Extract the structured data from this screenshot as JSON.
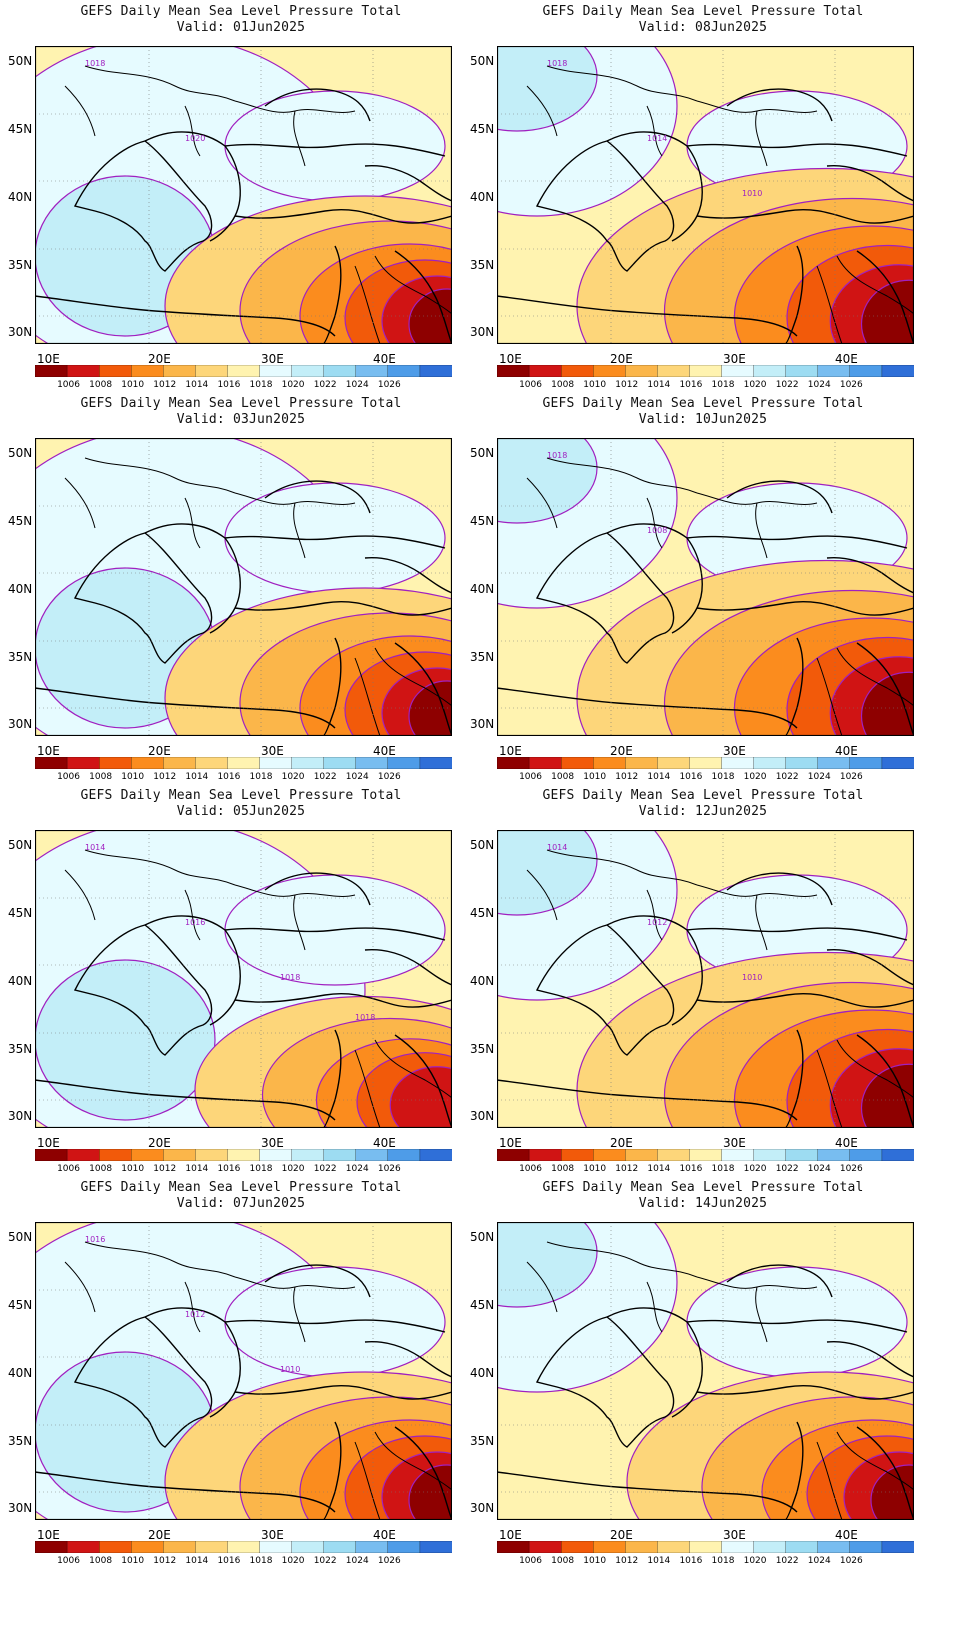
{
  "colorbar": {
    "levels": [
      "1006",
      "1008",
      "1010",
      "1012",
      "1014",
      "1016",
      "1018",
      "1020",
      "1022",
      "1024",
      "1026"
    ],
    "colors": [
      "#8e0000",
      "#d01414",
      "#f25a0a",
      "#fb8c1e",
      "#fbb64a",
      "#fdd67a",
      "#fff3b0",
      "#e6fbff",
      "#c3eef8",
      "#9ddcf2",
      "#78bdf0",
      "#4e9ce8",
      "#2f6fd8"
    ]
  },
  "lat_labels": [
    "50N",
    "45N",
    "40N",
    "35N",
    "30N"
  ],
  "lon_labels": [
    "10E",
    "20E",
    "30E",
    "40E"
  ],
  "panels": [
    {
      "title": "GEFS Daily Mean Sea Level Pressure Total",
      "valid": "Valid: 01Jun2025",
      "contour_labels": [
        "1018",
        "1020"
      ],
      "high_west": true,
      "low_east": "strong"
    },
    {
      "title": "GEFS Daily Mean Sea Level Pressure Total",
      "valid": "Valid: 08Jun2025",
      "contour_labels": [
        "1018",
        "1014",
        "1010"
      ],
      "high_west": false,
      "low_east": "very strong"
    },
    {
      "title": "GEFS Daily Mean Sea Level Pressure Total",
      "valid": "Valid: 03Jun2025",
      "contour_labels": [],
      "high_west": true,
      "low_east": "strong"
    },
    {
      "title": "GEFS Daily Mean Sea Level Pressure Total",
      "valid": "Valid: 10Jun2025",
      "contour_labels": [
        "1018",
        "1008"
      ],
      "high_west": false,
      "low_east": "very strong"
    },
    {
      "title": "GEFS Daily Mean Sea Level Pressure Total",
      "valid": "Valid: 05Jun2025",
      "contour_labels": [
        "1014",
        "1016",
        "1018",
        "1018"
      ],
      "high_west": true,
      "low_east": "moderate"
    },
    {
      "title": "GEFS Daily Mean Sea Level Pressure Total",
      "valid": "Valid: 12Jun2025",
      "contour_labels": [
        "1014",
        "1012",
        "1010"
      ],
      "high_west": false,
      "low_east": "very strong"
    },
    {
      "title": "GEFS Daily Mean Sea Level Pressure Total",
      "valid": "Valid: 07Jun2025",
      "contour_labels": [
        "1016",
        "1012",
        "1010"
      ],
      "high_west": true,
      "low_east": "strong"
    },
    {
      "title": "GEFS Daily Mean Sea Level Pressure Total",
      "valid": "Valid: 14Jun2025",
      "contour_labels": [],
      "high_west": false,
      "low_east": "strong"
    }
  ]
}
